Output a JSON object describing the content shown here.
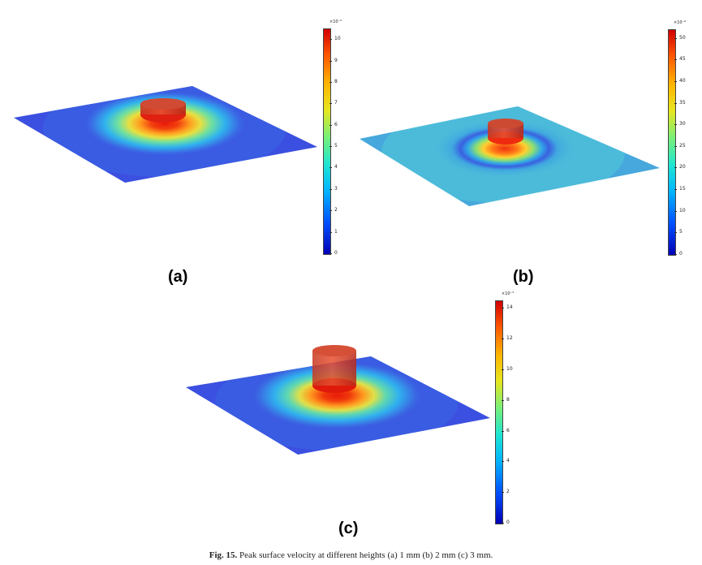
{
  "figure": {
    "caption_label": "Fig. 15.",
    "caption_text": "Peak surface velocity at different heights (a) 1 mm (b) 2 mm (c) 3 mm."
  },
  "panels": [
    {
      "label": "(a)",
      "colorbar": {
        "exponent": "×10⁻⁵",
        "ticks": [
          "10",
          "9",
          "8",
          "7",
          "6",
          "5",
          "4",
          "3",
          "2",
          "1",
          "0"
        ],
        "min": 0,
        "max": 10.5
      }
    },
    {
      "label": "(b)",
      "colorbar": {
        "exponent": "×10⁻⁶",
        "ticks": [
          "50",
          "45",
          "40",
          "35",
          "30",
          "25",
          "20",
          "15",
          "10",
          "5",
          "0"
        ],
        "min": 0,
        "max": 52
      }
    },
    {
      "label": "(c)",
      "colorbar": {
        "exponent": "×10⁻⁵",
        "ticks": [
          "14",
          "12",
          "10",
          "8",
          "6",
          "4",
          "2",
          "0"
        ],
        "min": 0,
        "max": 14.5
      }
    }
  ],
  "colors": {
    "low": "#2430d8",
    "mid": "#40c8e0",
    "high": "#e01e10"
  }
}
